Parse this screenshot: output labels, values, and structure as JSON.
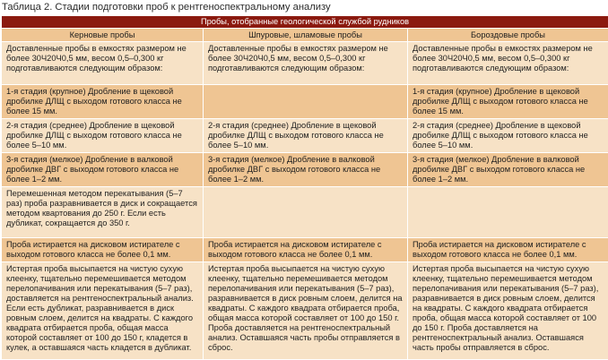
{
  "caption": "Таблица 2. Стадии подготовки проб к рентгеноспектральному анализу",
  "header": {
    "group": "Пробы, отобранные геологической службой рудников",
    "columns": [
      "Керновые пробы",
      "Шпуровые, шламовые пробы",
      "Бороздовые пробы"
    ]
  },
  "rows": [
    [
      "Доставленные пробы в емкостях размером не более 30Ч20Ч0,5 мм, весом 0,5–0,300 кг подготавливаются следующим образом:",
      "Доставленные пробы в емкостях размером не более 30Ч20Ч0,5 мм, весом 0,5–0,300 кг подготавливаются следующим образом:",
      "Доставленные пробы в емкостях размером не более 30Ч20Ч0,5 мм, весом 0,5–0,300 кг подготавливаются следующим образом:"
    ],
    [
      "1-я стадия (крупное) Дробление в щековой дробилке ДЛЩ с выходом готового класса не более 15 мм.",
      "",
      "1-я стадия (крупное) Дробление в щековой дробилке ДЛЩ с выходом готового класса не более 15 мм."
    ],
    [
      "2-я стадия (среднее) Дробление в щековой дробилке ДЛЩ с выходом готового класса не более 5–10 мм.",
      "2-я стадия (среднее) Дробление в щековой дробилке ДЛЩ с выходом готового класса не более 5–10 мм.",
      "2-я стадия (среднее) Дробление в щековой дробилке ДЛЩ с выходом готового класса не более 5–10 мм."
    ],
    [
      "3-я стадия (мелкое) Дробление в валковой дробилке ДВГ с выходом готового класса не более 1–2 мм.",
      "3-я стадия (мелкое) Дробление в валковой дробилке ДВГ с выходом готового класса не более 1–2 мм.",
      "3-я стадия (мелкое) Дробление в валковой дробилке ДВГ с выходом готового класса не более 1–2 мм."
    ],
    [
      "Перемешенная методом перекатывания (5–7 раз) проба разравнивается в диск и сокращается методом квартования до 250 г. Если есть дубликат, сокращается до 350 г.",
      "",
      ""
    ],
    [
      "Проба истирается на дисковом истирателе с выходом готового класса не более 0,1 мм.",
      "Проба истирается на дисковом истирателе с выходом готового класса не более 0,1 мм.",
      "Проба истирается на дисковом истирателе с выходом готового класса не более 0,1 мм."
    ],
    [
      "Истертая проба высыпается на чистую сухую клеенку, тщательно перемешивается методом перелопачивания или перекатывания (5–7 раз), доставляется на рентгеноспектральный анализ. Если есть дубликат, разравнивается в диск ровным слоем, делится на квадраты. С каждого квадрата отбирается проба, общая масса которой составляет от 100 до 150 г, кладется в кулек, а оставшаяся часть кладется в дубликат.",
      "Истертая проба высыпается на чистую сухую клеенку, тщательно перемешивается методом перелопачивания или перекатывания (5–7 раз), разравнивается в диск ровным слоем, делится на квадраты. С каждого квадрата отбирается проба, общая масса которой составляет от 100 до 150 г. Проба доставляется на рентгеноспектральный анализ. Оставшаяся часть пробы отправляется в сброс.",
      "Истертая проба высыпается на чистую сухую клеенку, тщательно перемешивается методом перелопачивания или перекатывания (5–7 раз), разравнивается в диск ровным слоем, делится на квадраты. С каждого квадрата отбирается проба, общая масса которой составляет от 100 до 150 г. Проба доставляется на рентгеноспектральный анализ. Оставшаяся часть пробы отправляется в сброс."
    ]
  ],
  "colors": {
    "header_band": "#8b1a0f",
    "dark_cell": "#efc593",
    "light_cell": "#f7e2c6"
  }
}
